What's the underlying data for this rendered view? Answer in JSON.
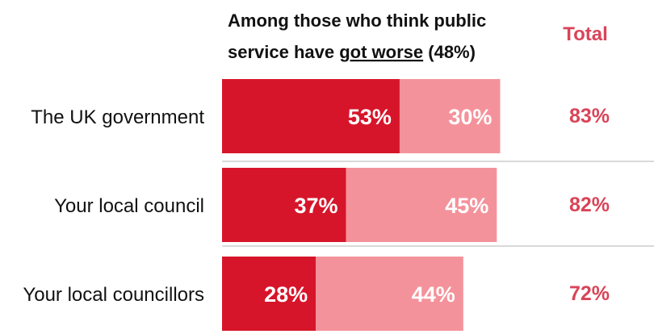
{
  "chart_data": {
    "type": "bar",
    "orientation": "horizontal",
    "stacked": true,
    "title_line1": "Among those who think public",
    "title_line2_prefix": "service have ",
    "title_line2_emph": "got worse",
    "title_line2_suffix": " (48%)",
    "total_header": "Total",
    "categories": [
      "The UK government",
      "Your local council",
      "Your local councillors"
    ],
    "series": [
      {
        "values": [
          53,
          37,
          28
        ],
        "color": "#d7152a"
      },
      {
        "values": [
          30,
          45,
          44
        ],
        "color": "#f4929b"
      }
    ],
    "totals": [
      83,
      82,
      72
    ],
    "value_suffix": "%",
    "xlim": [
      0,
      100
    ],
    "grid": false,
    "legend": "none",
    "total_color": "#d94458",
    "divider_color": "#d9d9d9"
  }
}
